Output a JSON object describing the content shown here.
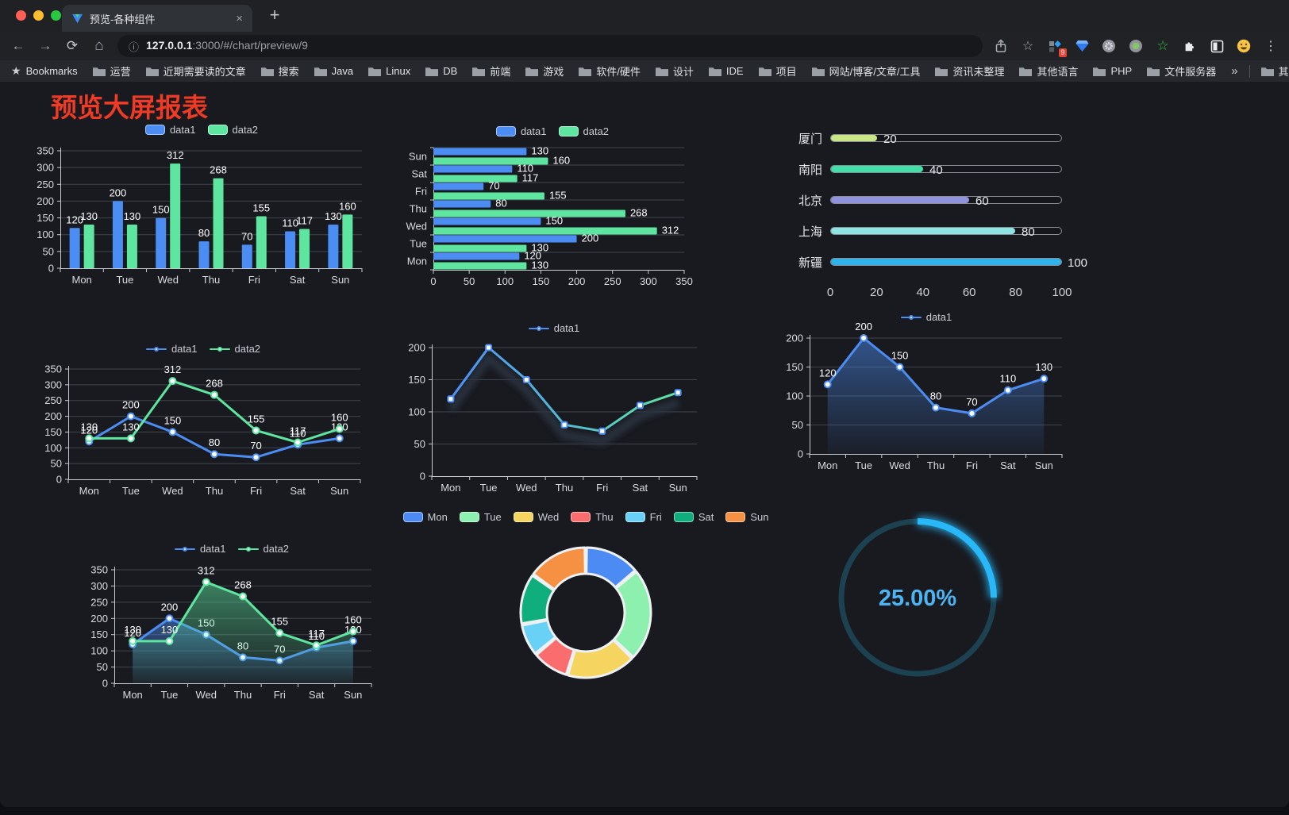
{
  "browser": {
    "tab_title": "预览-各种组件",
    "url_host": "127.0.0.1",
    "url_rest": ":3000/#/chart/preview/9",
    "bookmarks_label": "Bookmarks",
    "bookmarks": [
      "运营",
      "近期需要读的文章",
      "搜索",
      "Java",
      "Linux",
      "DB",
      "前端",
      "游戏",
      "软件/硬件",
      "设计",
      "IDE",
      "项目",
      "网站/博客/文章/工具",
      "资讯未整理",
      "其他语言",
      "PHP",
      "文件服务器"
    ],
    "other_bookmarks": "其他书签",
    "extension_badge": "9",
    "traffic_colors": [
      "#fe5f57",
      "#febd2e",
      "#2ac840"
    ]
  },
  "icons": {
    "close": "×",
    "plus": "+",
    "back": "←",
    "forward": "→",
    "reload": "⟳",
    "home": "⌂",
    "info": "ⓘ",
    "overflow": "»",
    "kebab": "⋮",
    "star_outline": "☆",
    "bookmarks_star": "★",
    "green_star": "☆"
  },
  "page": {
    "title": "预览大屏报表",
    "title_color": "#ef3b25"
  },
  "chart_data": [
    {
      "name": "grouped-bar",
      "type": "bar",
      "legend": "pill",
      "legend_top": 10,
      "show_labels": true,
      "title": "",
      "categories": [
        "Mon",
        "Tue",
        "Wed",
        "Thu",
        "Fri",
        "Sat",
        "Sun"
      ],
      "series": [
        {
          "name": "data1",
          "color": "#4b8df2",
          "values": [
            120,
            200,
            150,
            80,
            70,
            110,
            130
          ]
        },
        {
          "name": "data2",
          "color": "#5ee6a0",
          "values": [
            130,
            130,
            312,
            268,
            155,
            117,
            160
          ]
        }
      ],
      "ylim": [
        0,
        350
      ],
      "ytick": 50,
      "grid": true
    },
    {
      "name": "horizontal-bar",
      "type": "hbar",
      "legend": "pill",
      "legend_top": 8,
      "show_labels": true,
      "categories": [
        "Mon",
        "Tue",
        "Wed",
        "Thu",
        "Fri",
        "Sat",
        "Sun"
      ],
      "series": [
        {
          "name": "data1",
          "color": "#4b8df2",
          "values": [
            120,
            200,
            150,
            80,
            70,
            110,
            130
          ]
        },
        {
          "name": "data2",
          "color": "#5ee6a0",
          "values": [
            130,
            130,
            312,
            268,
            155,
            117,
            160
          ]
        }
      ],
      "xlim": [
        0,
        350
      ],
      "xtick": 50,
      "grid": true
    },
    {
      "name": "city-progress",
      "type": "progress",
      "max": 100,
      "axis_ticks": [
        0,
        20,
        40,
        60,
        80,
        100
      ],
      "items": [
        {
          "label": "厦门",
          "value": 20,
          "color": "#c8e687"
        },
        {
          "label": "南阳",
          "value": 40,
          "color": "#43dfa9"
        },
        {
          "label": "北京",
          "value": 60,
          "color": "#8f93dc"
        },
        {
          "label": "上海",
          "value": 80,
          "color": "#8de4e2"
        },
        {
          "label": "新疆",
          "value": 100,
          "color": "#2fb3ea"
        }
      ]
    },
    {
      "name": "two-series-line",
      "type": "line",
      "legend": "linedot",
      "legend_top": 10,
      "marker": "circle",
      "show_labels": true,
      "categories": [
        "Mon",
        "Tue",
        "Wed",
        "Thu",
        "Fri",
        "Sat",
        "Sun"
      ],
      "series": [
        {
          "name": "data1",
          "color": "#4b8df2",
          "values": [
            120,
            200,
            150,
            80,
            70,
            110,
            130
          ]
        },
        {
          "name": "data2",
          "color": "#5ee6a0",
          "values": [
            130,
            130,
            312,
            268,
            155,
            117,
            160
          ]
        }
      ],
      "ylim": [
        0,
        350
      ],
      "ytick": 50,
      "grid": true
    },
    {
      "name": "gradient-line",
      "type": "line",
      "legend": "linedot",
      "legend_top": 10,
      "marker": "square",
      "show_labels": false,
      "shadow": true,
      "gradient_stroke": [
        "#4e8ef7",
        "#54bbd4",
        "#5fe3a1"
      ],
      "categories": [
        "Mon",
        "Tue",
        "Wed",
        "Thu",
        "Fri",
        "Sat",
        "Sun"
      ],
      "series": [
        {
          "name": "data1",
          "color": "#4b8df2",
          "values": [
            120,
            200,
            150,
            80,
            70,
            110,
            130
          ]
        }
      ],
      "ylim": [
        0,
        200
      ],
      "ytick": 50,
      "grid": true
    },
    {
      "name": "area-line",
      "type": "line",
      "legend": "linedot",
      "legend_top": 6,
      "marker": "circle",
      "show_labels": true,
      "area": true,
      "categories": [
        "Mon",
        "Tue",
        "Wed",
        "Thu",
        "Fri",
        "Sat",
        "Sun"
      ],
      "series": [
        {
          "name": "data1",
          "color": "#4b8df2",
          "values": [
            120,
            200,
            150,
            80,
            70,
            110,
            130
          ]
        }
      ],
      "ylim": [
        0,
        200
      ],
      "ytick": 50,
      "grid": true
    },
    {
      "name": "two-series-area",
      "type": "line",
      "legend": "linedot",
      "legend_top": 12,
      "marker": "circle",
      "show_labels": true,
      "area": true,
      "categories": [
        "Mon",
        "Tue",
        "Wed",
        "Thu",
        "Fri",
        "Sat",
        "Sun"
      ],
      "series": [
        {
          "name": "data1",
          "color": "#4b8df2",
          "values": [
            120,
            200,
            150,
            80,
            70,
            110,
            130
          ]
        },
        {
          "name": "data2",
          "color": "#5ee6a0",
          "values": [
            130,
            130,
            312,
            268,
            155,
            117,
            160
          ]
        }
      ],
      "ylim": [
        0,
        350
      ],
      "ytick": 50,
      "grid": true
    },
    {
      "name": "week-donut",
      "type": "donut",
      "legend": "pill",
      "legend_top": 8,
      "categories": [
        "Mon",
        "Tue",
        "Wed",
        "Thu",
        "Fri",
        "Sat",
        "Sun"
      ],
      "values": [
        120,
        200,
        150,
        80,
        70,
        110,
        130
      ],
      "colors": [
        "#4b8bf3",
        "#8df0ae",
        "#f5d55f",
        "#f96d6f",
        "#69d1f6",
        "#10ae7c",
        "#f69144"
      ],
      "border_color": "#eef1f3"
    },
    {
      "name": "percent-gauge",
      "type": "gauge",
      "value": 25,
      "label": "25.00%",
      "color": "#28b7f7",
      "track": "#1c4150",
      "text_color": "#4db3f2"
    }
  ]
}
